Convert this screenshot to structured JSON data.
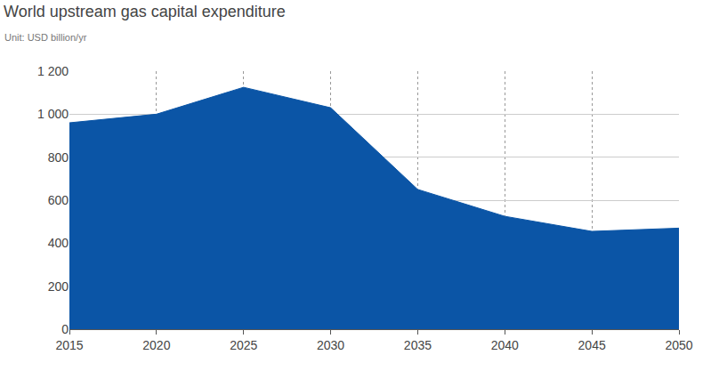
{
  "chart_data": {
    "type": "area",
    "title": "World upstream gas capital expenditure",
    "subtitle": "Unit: USD billion/yr",
    "x": [
      2015,
      2020,
      2025,
      2030,
      2035,
      2040,
      2045,
      2050
    ],
    "values": [
      960,
      1000,
      1125,
      1030,
      650,
      525,
      455,
      470
    ],
    "color": "#0b55a6",
    "xlim": [
      2015,
      2050
    ],
    "xticks": [
      2015,
      2020,
      2025,
      2030,
      2035,
      2040,
      2045,
      2050
    ],
    "ylim": [
      0,
      1200
    ],
    "yticks": [
      0,
      200,
      400,
      600,
      800,
      {
        "value": 1000,
        "label": "1 000"
      },
      {
        "value": 1200,
        "label": "1 200"
      }
    ],
    "grid": true
  }
}
